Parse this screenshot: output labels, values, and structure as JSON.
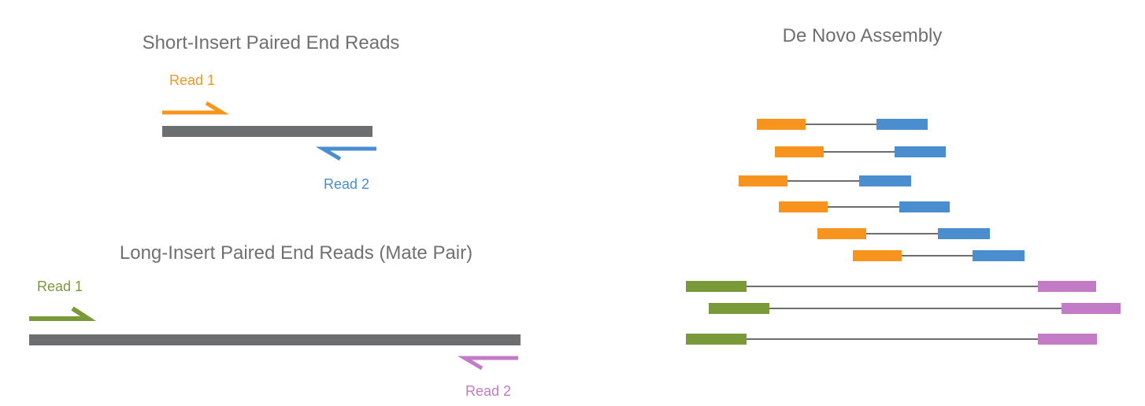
{
  "short_insert": {
    "title": "Short-Insert Paired End Reads",
    "read1_label": "Read 1",
    "read2_label": "Read 2"
  },
  "long_insert": {
    "title": "Long-Insert Paired End Reads (Mate Pair)",
    "read1_label": "Read 1",
    "read2_label": "Read 2"
  },
  "assembly": {
    "title": "De Novo Assembly",
    "short_pairs": 6,
    "mate_pairs": 3
  },
  "colors": {
    "insert": "#6d6e70",
    "short_read1": "#f7941d",
    "short_read2": "#4a8ed0",
    "mate_read1": "#7a9a3a",
    "mate_read2": "#c27bc4",
    "link": "#6d6e70",
    "title_text": "#707070"
  }
}
